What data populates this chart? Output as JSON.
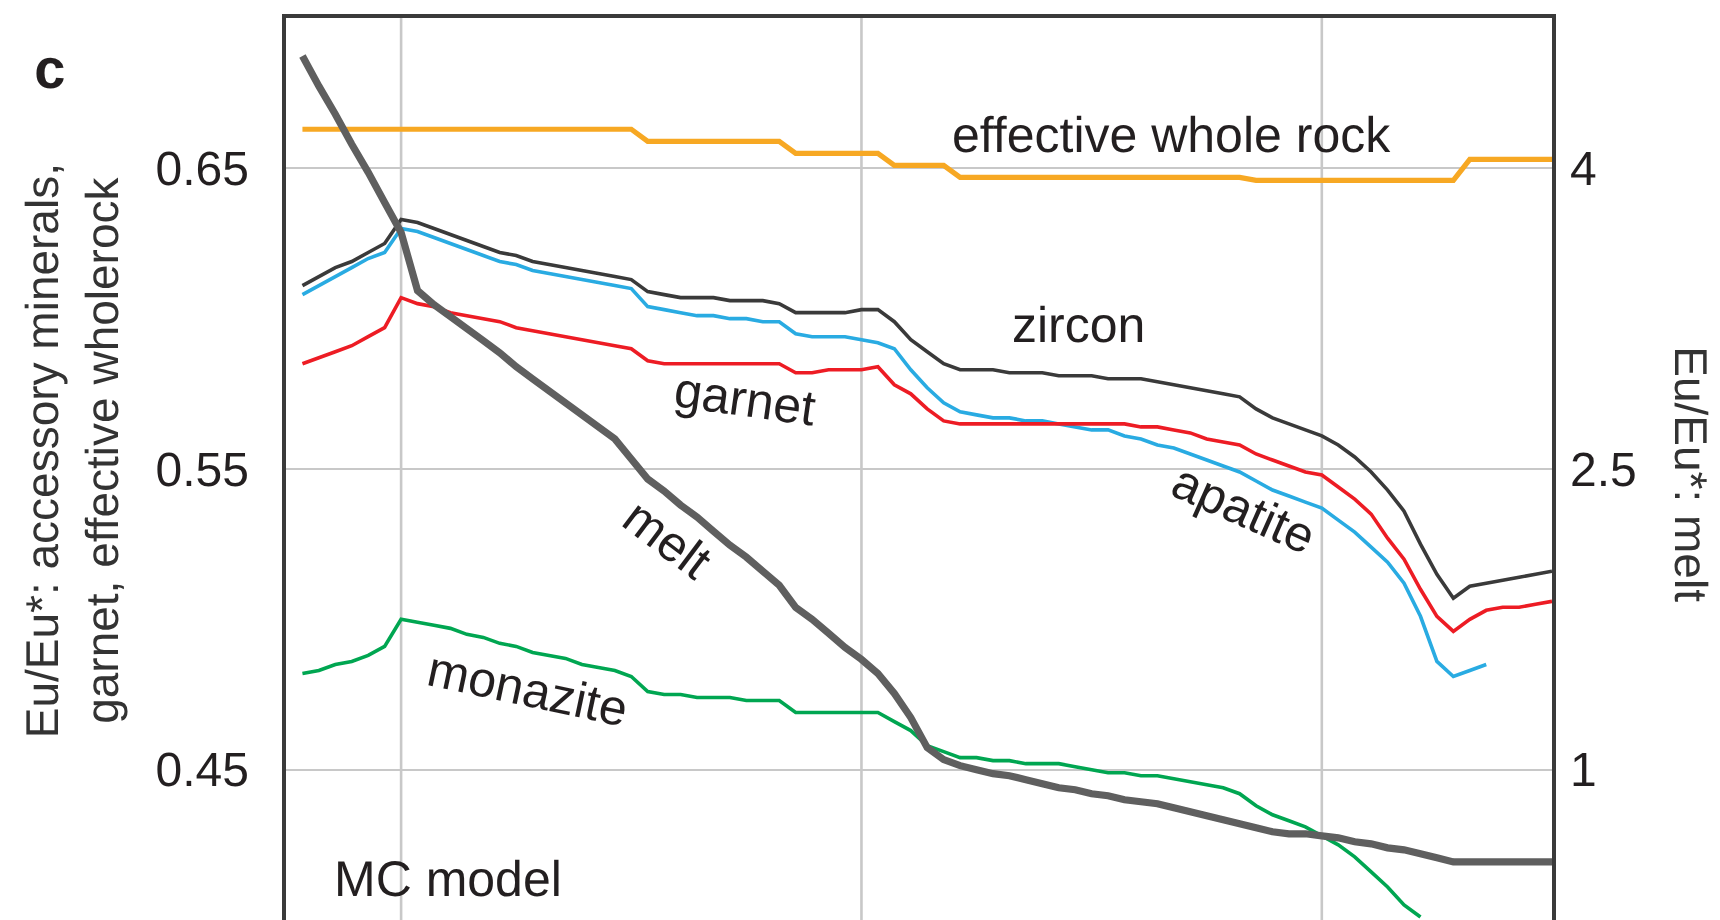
{
  "chart_data": {
    "type": "line",
    "title": "c",
    "ylabel": "Eu/Eu*: accessory minerals,\ngarnet, effective wholerock",
    "y2label": "Eu/Eu*: melt",
    "annotations": [
      "MC model"
    ],
    "categories": [
      null,
      null,
      null,
      null,
      null,
      null,
      null,
      null,
      null,
      null,
      null,
      null,
      null,
      null,
      null,
      null,
      null,
      null,
      null,
      null,
      null,
      null,
      null,
      null,
      null,
      null,
      null,
      null,
      null,
      null,
      null,
      null,
      null,
      null,
      null,
      null,
      null,
      null,
      null,
      null,
      null,
      null,
      null,
      null,
      null,
      null,
      null,
      null,
      null,
      null,
      null,
      null,
      null,
      null,
      null,
      null,
      null,
      null,
      null,
      null,
      null,
      null,
      null,
      null,
      null,
      null,
      null,
      null,
      null,
      null,
      null,
      null,
      null,
      null,
      null,
      null,
      null
    ],
    "ylim": [
      0.4,
      0.7
    ],
    "yticks": [
      0.45,
      0.55,
      0.65
    ],
    "y2lim": [
      0.25,
      4.75
    ],
    "y2ticks": [
      1,
      2.5,
      4
    ],
    "grid": true,
    "series": [
      {
        "name": "effective whole rock",
        "color": "#f7a823",
        "values": [
          0.663,
          0.663,
          0.663,
          0.663,
          0.663,
          0.663,
          0.663,
          0.663,
          0.663,
          0.663,
          0.663,
          0.663,
          0.663,
          0.663,
          0.663,
          0.663,
          0.663,
          0.663,
          0.663,
          0.663,
          0.663,
          0.659,
          0.659,
          0.659,
          0.659,
          0.659,
          0.659,
          0.659,
          0.659,
          0.659,
          0.655,
          0.655,
          0.655,
          0.655,
          0.655,
          0.655,
          0.651,
          0.651,
          0.651,
          0.651,
          0.647,
          0.647,
          0.647,
          0.647,
          0.647,
          0.647,
          0.647,
          0.647,
          0.647,
          0.647,
          0.647,
          0.647,
          0.647,
          0.647,
          0.647,
          0.647,
          0.647,
          0.647,
          0.646,
          0.646,
          0.646,
          0.646,
          0.646,
          0.646,
          0.646,
          0.646,
          0.646,
          0.646,
          0.646,
          0.646,
          0.646,
          0.653,
          0.653,
          0.653,
          0.653,
          0.653,
          0.653
        ]
      },
      {
        "name": "zircon",
        "color": "#3a3a3a",
        "values": [
          0.611,
          0.614,
          0.617,
          0.619,
          0.622,
          0.625,
          0.633,
          0.632,
          0.63,
          0.628,
          0.626,
          0.624,
          0.622,
          0.621,
          0.619,
          0.618,
          0.617,
          0.616,
          0.615,
          0.614,
          0.613,
          0.609,
          0.608,
          0.607,
          0.607,
          0.607,
          0.606,
          0.606,
          0.606,
          0.605,
          0.602,
          0.602,
          0.602,
          0.602,
          0.603,
          0.603,
          0.599,
          0.593,
          0.589,
          0.585,
          0.583,
          0.583,
          0.583,
          0.582,
          0.582,
          0.582,
          0.581,
          0.581,
          0.581,
          0.58,
          0.58,
          0.58,
          0.579,
          0.578,
          0.577,
          0.576,
          0.575,
          0.574,
          0.57,
          0.567,
          0.565,
          0.563,
          0.561,
          0.558,
          0.554,
          0.549,
          0.543,
          0.536,
          0.525,
          0.515,
          0.507,
          0.511,
          0.512,
          0.513,
          0.514,
          0.515,
          0.516
        ]
      },
      {
        "name": "apatite",
        "color": "#29abe2",
        "values": [
          0.608,
          0.611,
          0.614,
          0.617,
          0.62,
          0.622,
          0.63,
          0.629,
          0.627,
          0.625,
          0.623,
          0.621,
          0.619,
          0.618,
          0.616,
          0.615,
          0.614,
          0.613,
          0.612,
          0.611,
          0.61,
          0.604,
          0.603,
          0.602,
          0.601,
          0.601,
          0.6,
          0.6,
          0.599,
          0.599,
          0.595,
          0.594,
          0.594,
          0.594,
          0.593,
          0.592,
          0.59,
          0.583,
          0.577,
          0.572,
          0.569,
          0.568,
          0.567,
          0.567,
          0.566,
          0.566,
          0.565,
          0.564,
          0.563,
          0.563,
          0.561,
          0.56,
          0.558,
          0.557,
          0.555,
          0.553,
          0.551,
          0.549,
          0.546,
          0.543,
          0.541,
          0.539,
          0.537,
          0.533,
          0.529,
          0.524,
          0.519,
          0.512,
          0.501,
          0.486,
          0.481,
          0.483,
          0.485,
          null,
          null,
          null,
          null
        ]
      },
      {
        "name": "garnet",
        "color": "#ed1c24",
        "values": [
          0.585,
          0.587,
          0.589,
          0.591,
          0.594,
          0.597,
          0.607,
          0.605,
          0.604,
          0.602,
          0.601,
          0.6,
          0.599,
          0.597,
          0.596,
          0.595,
          0.594,
          0.593,
          0.592,
          0.591,
          0.59,
          0.586,
          0.585,
          0.585,
          0.585,
          0.585,
          0.585,
          0.585,
          0.585,
          0.585,
          0.582,
          0.582,
          0.583,
          0.583,
          0.583,
          0.584,
          0.578,
          0.575,
          0.57,
          0.566,
          0.565,
          0.565,
          0.565,
          0.565,
          0.565,
          0.565,
          0.565,
          0.565,
          0.565,
          0.565,
          0.565,
          0.564,
          0.564,
          0.563,
          0.562,
          0.56,
          0.559,
          0.558,
          0.555,
          0.553,
          0.551,
          0.549,
          0.548,
          0.544,
          0.54,
          0.535,
          0.527,
          0.52,
          0.51,
          0.501,
          0.496,
          0.5,
          0.503,
          0.504,
          0.504,
          0.505,
          0.506
        ]
      },
      {
        "name": "monazite",
        "color": "#00a651",
        "values": [
          0.482,
          0.483,
          0.485,
          0.486,
          0.488,
          0.491,
          0.5,
          0.499,
          0.498,
          0.497,
          0.495,
          0.494,
          0.492,
          0.491,
          0.489,
          0.488,
          0.487,
          0.485,
          0.484,
          0.483,
          0.481,
          0.476,
          0.475,
          0.475,
          0.474,
          0.474,
          0.474,
          0.473,
          0.473,
          0.473,
          0.469,
          0.469,
          0.469,
          0.469,
          0.469,
          0.469,
          0.466,
          0.463,
          0.458,
          0.456,
          0.454,
          0.454,
          0.453,
          0.453,
          0.452,
          0.452,
          0.452,
          0.451,
          0.45,
          0.449,
          0.449,
          0.448,
          0.448,
          0.447,
          0.446,
          0.445,
          0.444,
          0.442,
          0.438,
          0.435,
          0.433,
          0.431,
          0.428,
          0.425,
          0.421,
          0.416,
          0.411,
          0.405,
          0.401,
          null,
          null,
          null,
          null,
          null,
          null,
          null,
          null
        ]
      },
      {
        "name": "melt",
        "color": "#5f5f5f",
        "axis": "y2",
        "values": [
          4.56,
          4.41,
          4.27,
          4.12,
          3.98,
          3.83,
          3.68,
          3.39,
          3.32,
          3.26,
          3.2,
          3.14,
          3.08,
          3.01,
          2.95,
          2.89,
          2.83,
          2.77,
          2.71,
          2.65,
          2.55,
          2.45,
          2.39,
          2.32,
          2.26,
          2.19,
          2.12,
          2.06,
          1.99,
          1.92,
          1.81,
          1.75,
          1.68,
          1.61,
          1.55,
          1.48,
          1.38,
          1.26,
          1.11,
          1.05,
          1.02,
          1.0,
          0.98,
          0.97,
          0.95,
          0.93,
          0.91,
          0.9,
          0.88,
          0.87,
          0.85,
          0.84,
          0.83,
          0.81,
          0.79,
          0.77,
          0.75,
          0.73,
          0.71,
          0.69,
          0.68,
          0.68,
          0.67,
          0.66,
          0.64,
          0.63,
          0.61,
          0.6,
          0.58,
          0.56,
          0.54,
          0.54,
          0.54,
          0.54,
          0.54,
          0.54,
          0.54
        ]
      }
    ]
  }
}
